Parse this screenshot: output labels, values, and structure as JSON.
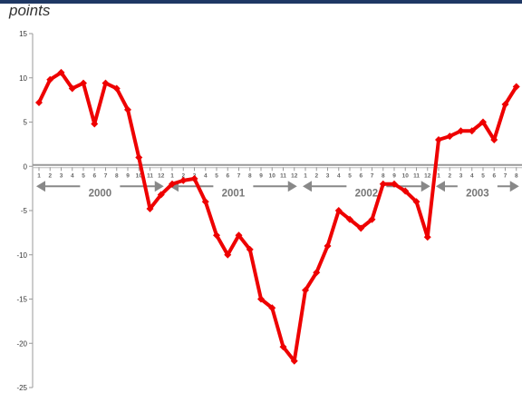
{
  "chart_data": {
    "type": "line",
    "title": "",
    "xlabel": "",
    "ylabel": "points",
    "ylim": [
      -25,
      15
    ],
    "yticks": [
      15,
      10,
      5,
      0,
      -5,
      -10,
      -15,
      -20,
      -25
    ],
    "grid": false,
    "legend": "none",
    "colors": {
      "line": "#ee0000",
      "axis": "#999999",
      "zero_line": "#999999",
      "top_bar": "#1f3864",
      "year_arrow": "#888888"
    },
    "years": [
      {
        "label": "2000",
        "months": [
          "1",
          "2",
          "3",
          "4",
          "5",
          "6",
          "7",
          "8",
          "9",
          "10",
          "11",
          "12"
        ]
      },
      {
        "label": "2001",
        "months": [
          "1",
          "2",
          "3",
          "4",
          "5",
          "6",
          "7",
          "8",
          "9",
          "10",
          "11",
          "12"
        ]
      },
      {
        "label": "2002",
        "months": [
          "1",
          "2",
          "3",
          "4",
          "5",
          "6",
          "7",
          "8",
          "9",
          "10",
          "11",
          "12"
        ]
      },
      {
        "label": "2003",
        "months": [
          "1",
          "2",
          "3",
          "4",
          "5",
          "6",
          "7",
          "8"
        ]
      }
    ],
    "series": [
      {
        "values": [
          7.2,
          9.8,
          10.6,
          8.8,
          9.4,
          4.8,
          9.4,
          8.8,
          6.4,
          1.0,
          -4.8,
          -3.2,
          -2.0,
          -1.6,
          -1.4,
          -4.0,
          -7.8,
          -10.0,
          -7.8,
          -9.4,
          -15.0,
          -16.0,
          -20.4,
          -22.0,
          -14.0,
          -12.0,
          -9.0,
          -5.0,
          -6.0,
          -7.0,
          -6.0,
          -2.0,
          -2.0,
          -2.8,
          -4.0,
          -8.0,
          3.0,
          3.4,
          4.0,
          4.0,
          5.0,
          3.0,
          7.0,
          9.0
        ]
      }
    ]
  }
}
